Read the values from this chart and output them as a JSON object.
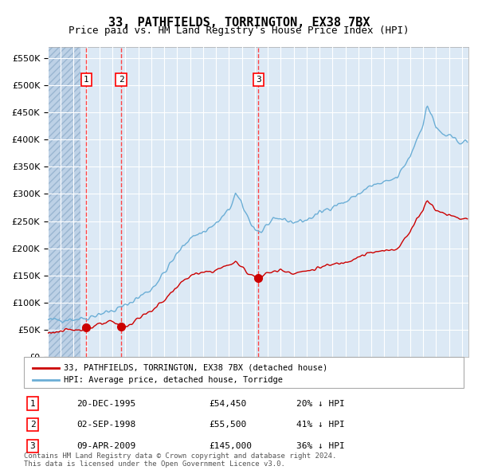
{
  "title": "33, PATHFIELDS, TORRINGTON, EX38 7BX",
  "subtitle": "Price paid vs. HM Land Registry's House Price Index (HPI)",
  "hpi_label": "HPI: Average price, detached house, Torridge",
  "property_label": "33, PATHFIELDS, TORRINGTON, EX38 7BX (detached house)",
  "transactions": [
    {
      "num": 1,
      "date": "20-DEC-1995",
      "year": 1995.97,
      "price": 54450,
      "pct": "20%",
      "dir": "↓"
    },
    {
      "num": 2,
      "date": "02-SEP-1998",
      "year": 1998.67,
      "price": 55500,
      "pct": "41%",
      "dir": "↓"
    },
    {
      "num": 3,
      "date": "09-APR-2009",
      "year": 2009.27,
      "price": 145000,
      "pct": "36%",
      "dir": "↓"
    }
  ],
  "ylabel_ticks": [
    "£0",
    "£50K",
    "£100K",
    "£150K",
    "£200K",
    "£250K",
    "£300K",
    "£350K",
    "£400K",
    "£450K",
    "£500K",
    "£550K"
  ],
  "ytick_values": [
    0,
    50000,
    100000,
    150000,
    200000,
    250000,
    300000,
    350000,
    400000,
    450000,
    500000,
    550000
  ],
  "ylim": [
    0,
    570000
  ],
  "xlim_start": 1993.0,
  "xlim_end": 2025.5,
  "hatch_end_year": 1995.5,
  "background_color": "#dce9f5",
  "hatch_color": "#b0c8e0",
  "grid_color": "#ffffff",
  "hpi_color": "#6baed6",
  "property_color": "#cc0000",
  "vline_color": "#ff4444",
  "footnote": "Contains HM Land Registry data © Crown copyright and database right 2024.\nThis data is licensed under the Open Government Licence v3.0."
}
